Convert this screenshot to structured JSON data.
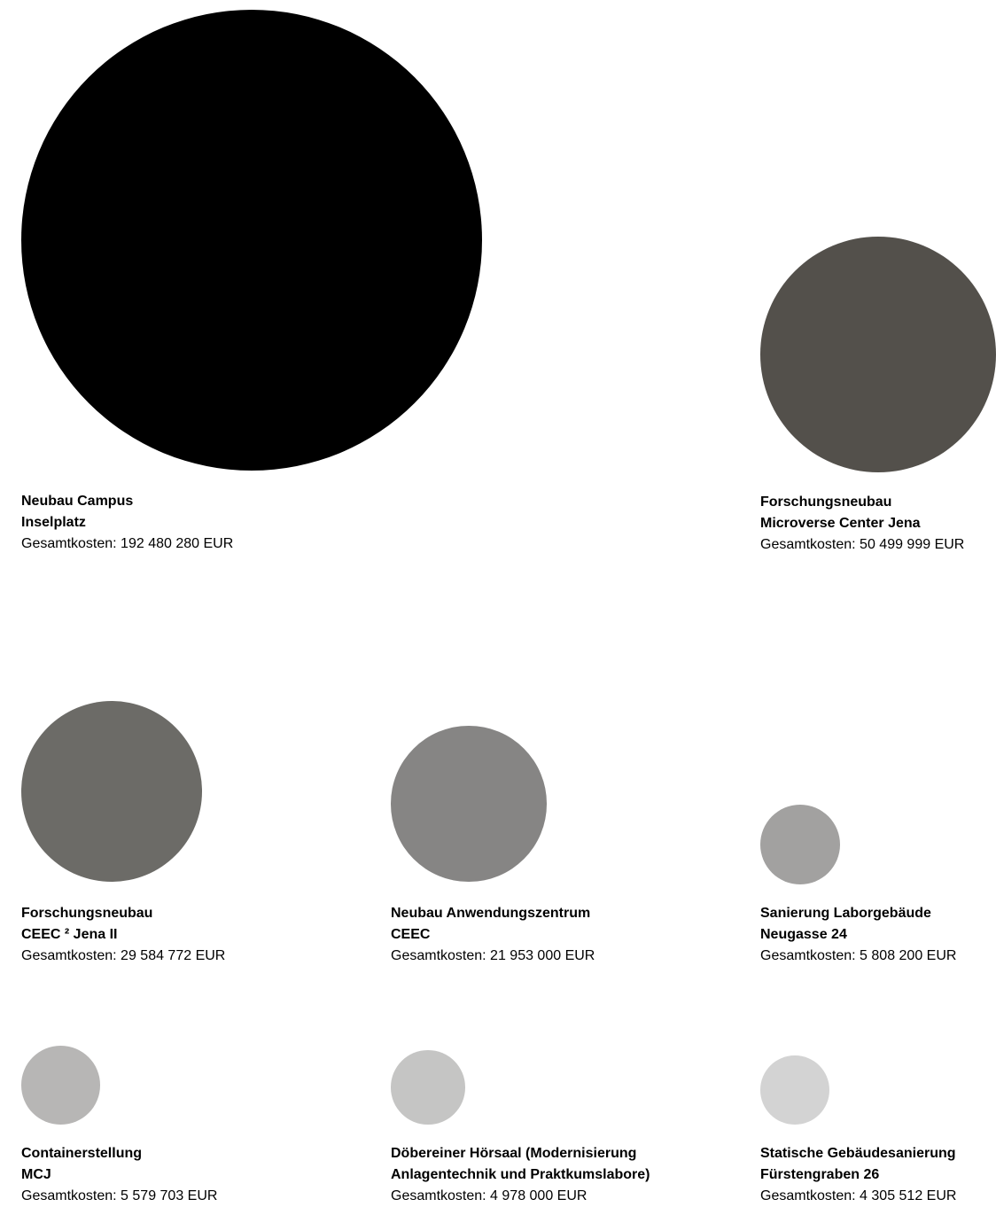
{
  "chart_data": {
    "type": "bubble",
    "title": "",
    "value_prefix": "Gesamtkosten: ",
    "value_suffix": " EUR",
    "items": [
      {
        "title_line1": "Neubau Campus",
        "title_line2": "Inselplatz",
        "cost_text": "192 480 280",
        "value": 192480280,
        "color": "#000000"
      },
      {
        "title_line1": "Forschungsneubau",
        "title_line2": "Microverse Center Jena",
        "cost_text": "50 499 999",
        "value": 50499999,
        "color": "#53504b"
      },
      {
        "title_line1": "Forschungsneubau",
        "title_line2": "CEEC ² Jena II",
        "cost_text": "29 584 772",
        "value": 29584772,
        "color": "#6c6b67"
      },
      {
        "title_line1": "Neubau Anwendungszentrum",
        "title_line2": "CEEC",
        "cost_text": "21 953 000",
        "value": 21953000,
        "color": "#868584"
      },
      {
        "title_line1": "Sanierung Laborgebäude",
        "title_line2": "Neugasse 24",
        "cost_text": "5 808 200",
        "value": 5808200,
        "color": "#a2a1a0"
      },
      {
        "title_line1": "Containerstellung",
        "title_line2": "MCJ",
        "cost_text": "5 579 703",
        "value": 5579703,
        "color": "#b7b6b5"
      },
      {
        "title_line1": "Döbereiner Hörsaal (Modernisierung",
        "title_line2": "Anlagentechnik und Praktkumslabore)",
        "cost_text": "4 978 000",
        "value": 4978000,
        "color": "#c5c5c4"
      },
      {
        "title_line1": "Statische Gebäudesanierung",
        "title_line2": "Fürstengraben 26",
        "cost_text": "4 305 512",
        "value": 4305512,
        "color": "#d3d3d3"
      }
    ]
  }
}
